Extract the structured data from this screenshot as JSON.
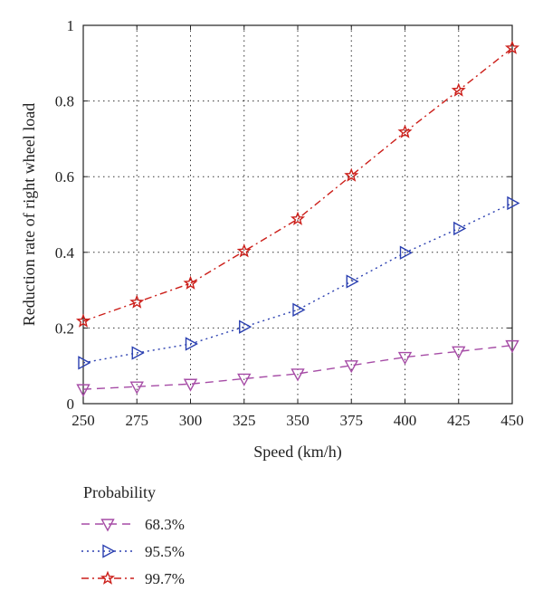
{
  "chart_data": {
    "type": "line",
    "title": "",
    "xlabel": "Speed (km/h)",
    "ylabel": "Reduction rate of right wheel load",
    "x": [
      250,
      275,
      300,
      325,
      350,
      375,
      400,
      425,
      450
    ],
    "xlim": [
      250,
      450
    ],
    "ylim": [
      0,
      1
    ],
    "xticks": [
      "250",
      "275",
      "300",
      "325",
      "350",
      "375",
      "400",
      "425",
      "450"
    ],
    "yticks": [
      "0",
      "0.2",
      "0.4",
      "0.6",
      "0.8",
      "1"
    ],
    "grid": true,
    "legend": {
      "title": "Probability",
      "placement": "bottom-left, below plot"
    },
    "series": [
      {
        "name": "68.3%",
        "color": "#a64ca6",
        "marker": "triangle-down",
        "line": "dashed",
        "values": [
          0.038,
          0.045,
          0.052,
          0.066,
          0.079,
          0.101,
          0.123,
          0.138,
          0.154
        ]
      },
      {
        "name": "95.5%",
        "color": "#2a3fb0",
        "marker": "triangle-right",
        "line": "dotted",
        "values": [
          0.108,
          0.134,
          0.158,
          0.203,
          0.248,
          0.323,
          0.399,
          0.463,
          0.53
        ]
      },
      {
        "name": "99.7%",
        "color": "#cc1f1a",
        "marker": "star",
        "line": "dash-dot",
        "values": [
          0.218,
          0.268,
          0.318,
          0.403,
          0.488,
          0.603,
          0.718,
          0.828,
          0.94
        ]
      }
    ]
  }
}
